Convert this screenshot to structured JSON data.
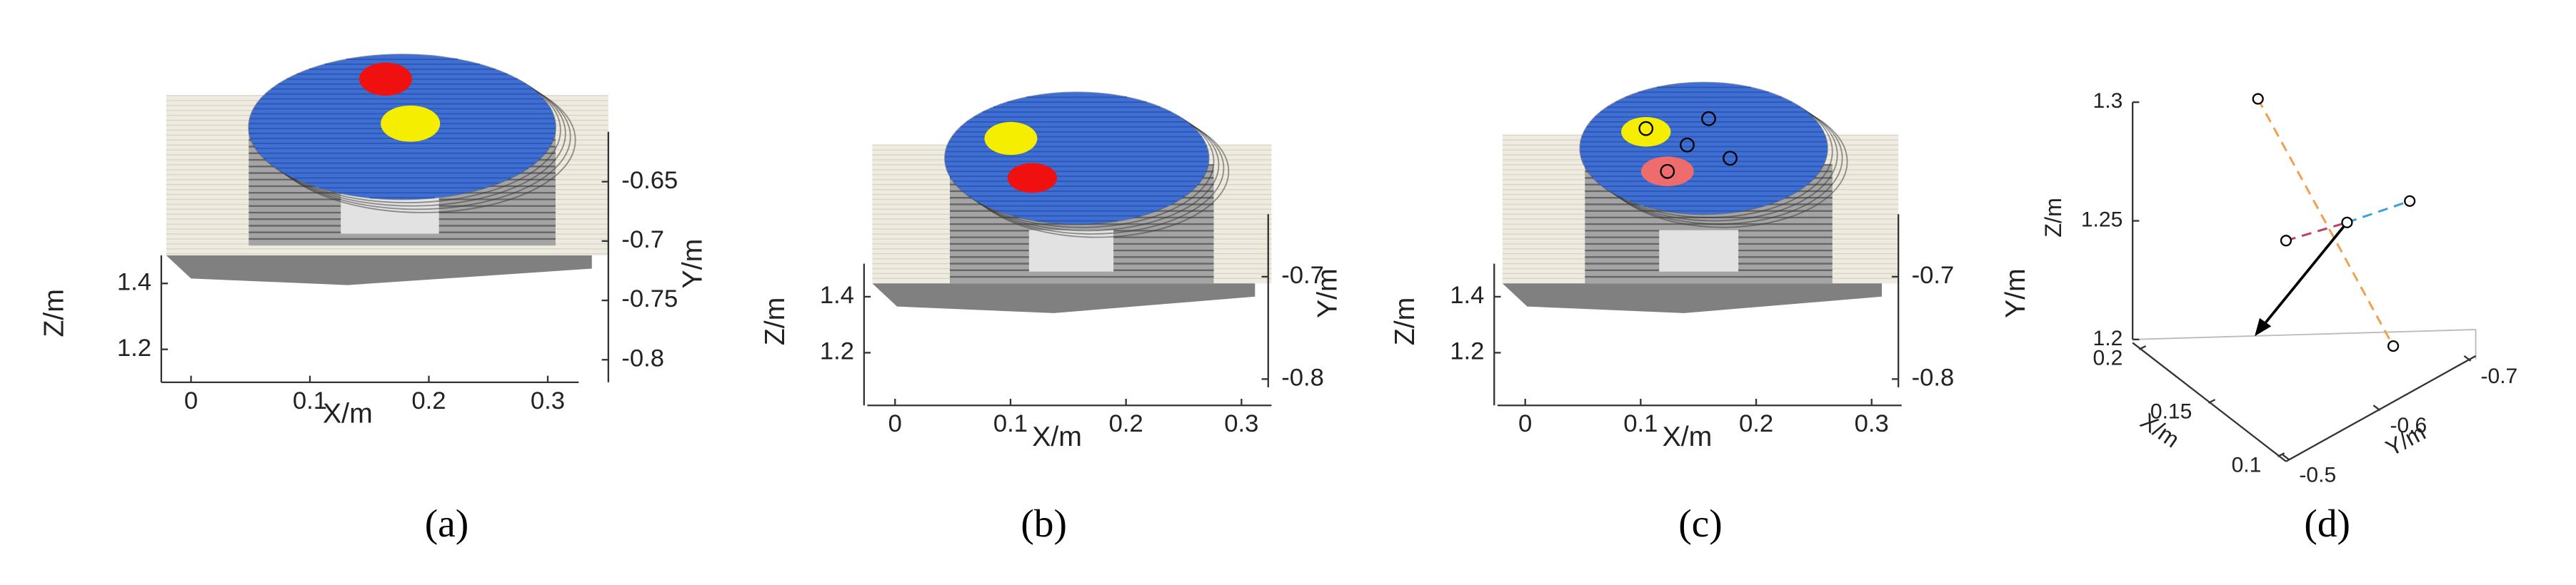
{
  "panels": [
    {
      "caption": "(a)",
      "x_label": "X/m",
      "y_label": "Y/m",
      "z_label": "Z/m",
      "xlim": [
        -0.025,
        0.326
      ],
      "xticks": [
        0,
        0.1,
        0.2,
        0.3
      ],
      "zlim": [
        1.1,
        1.485
      ],
      "zticks": [
        1.2,
        1.4
      ],
      "ylim": [
        -0.819,
        -0.608
      ],
      "yticks": [
        -0.65,
        -0.7,
        -0.75,
        -0.8
      ]
    },
    {
      "caption": "(b)",
      "x_label": "X/m",
      "y_label": "Y/m",
      "z_label": "Z/m",
      "xlim": [
        -0.024,
        0.326
      ],
      "xticks": [
        0,
        0.1,
        0.2,
        0.3
      ],
      "zlim": [
        1.012,
        1.518
      ],
      "zticks": [
        1.2,
        1.4
      ],
      "ylim": [
        -0.808,
        -0.639
      ],
      "yticks": [
        -0.7,
        -0.8
      ]
    },
    {
      "caption": "(c)",
      "x_label": "X/m",
      "y_label": "Y/m",
      "z_label": "Z/m",
      "xlim": [
        -0.024,
        0.326
      ],
      "xticks": [
        0,
        0.1,
        0.2,
        0.3
      ],
      "zlim": [
        1.012,
        1.518
      ],
      "zticks": [
        1.2,
        1.4
      ],
      "ylim": [
        -0.808,
        -0.639
      ],
      "yticks": [
        -0.7,
        -0.8
      ]
    },
    {
      "caption": "(d)",
      "x_label": "X/m",
      "y_label": "Y/m",
      "z_label": "Z/m",
      "xlim": [
        0.1,
        0.2
      ],
      "xticks": [
        0.1,
        0.15,
        0.2
      ],
      "zlim": [
        1.2,
        1.3
      ],
      "zticks": [
        1.2,
        1.25,
        1.3
      ],
      "ylim": [
        -0.5,
        -0.7
      ],
      "yticks": [
        -0.5,
        -0.6,
        -0.7
      ]
    }
  ]
}
